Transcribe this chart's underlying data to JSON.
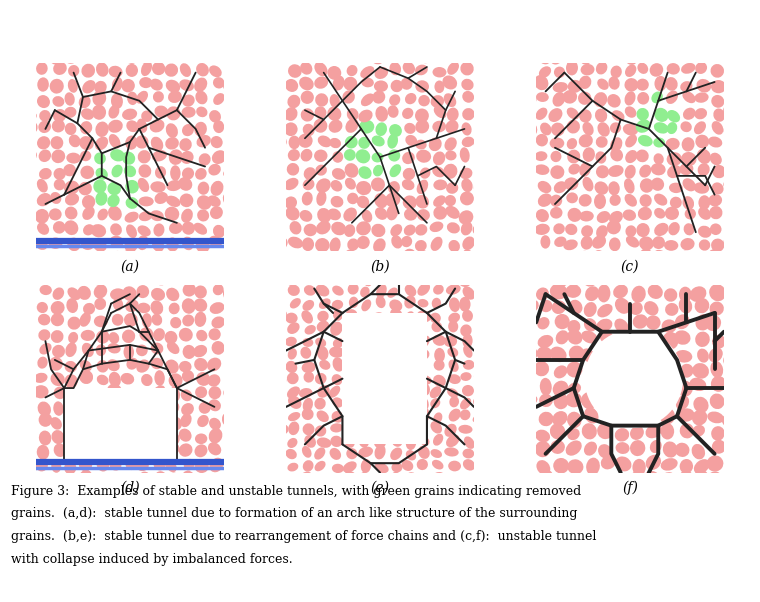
{
  "fig_width": 7.6,
  "fig_height": 6.02,
  "dpi": 100,
  "background_color": "#ffffff",
  "caption_line1": "Figure 3:  Examples of stable and unstable tunnels, with green grains indicating removed",
  "caption_line2": "grains.  (a,d):  stable tunnel due to formation of an arch like structure of the surrounding",
  "caption_line3": "grains.  (b,e):  stable tunnel due to rearrangement of force chains and (c,f):  unstable tunnel",
  "caption_line4": "with collapse induced by imbalanced forces.",
  "caption_fontsize": 9.0,
  "panel_labels": [
    "(a)",
    "(b)",
    "(c)",
    "(d)",
    "(e)",
    "(f)"
  ],
  "panel_label_fontsize": 10,
  "pink_color": "#F4A0A0",
  "green_color": "#90EE90",
  "white_color": "#FFFFFF",
  "crack_color": "#222222",
  "blue_color": "#3355cc"
}
